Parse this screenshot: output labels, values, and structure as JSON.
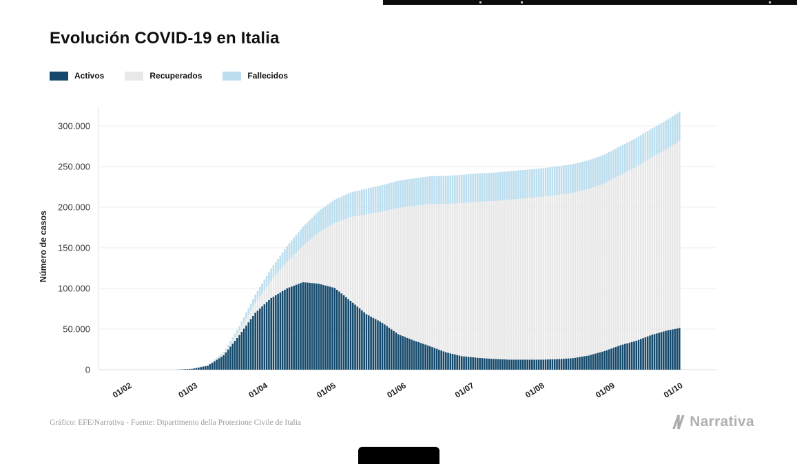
{
  "page": {
    "title": "Evolución COVID-19 en Italia",
    "footer_source": "Gráfico: EFE/Narrativa - Fuente: Dipartimento della Protezione Civile de Italia",
    "brand": "Narrativa"
  },
  "legend": {
    "items": [
      {
        "label": "Activos",
        "color": "#14496B"
      },
      {
        "label": "Recuperados",
        "color": "#E8E8E8"
      },
      {
        "label": "Fallecidos",
        "color": "#BCDEEE"
      }
    ],
    "position": "top-left"
  },
  "chart_data": {
    "type": "area",
    "stacked": true,
    "title": "Evolución COVID-19 en Italia",
    "xlabel": "",
    "ylabel": "Número de casos",
    "grid": "horizontal",
    "ylim": [
      0,
      325000
    ],
    "y_ticks": [
      0,
      50000,
      100000,
      150000,
      200000,
      250000,
      300000
    ],
    "y_tick_labels": [
      "0",
      "50.000",
      "100.000",
      "150.000",
      "200.000",
      "250.000",
      "300.000"
    ],
    "x_tick_labels": [
      "01/02",
      "01/03",
      "01/04",
      "01/05",
      "01/06",
      "01/07",
      "01/08",
      "01/09",
      "01/10"
    ],
    "x_month_days": [
      0,
      29,
      60,
      90,
      121,
      151,
      182,
      213,
      243
    ],
    "x_anchor_dates": [
      "01/02",
      "08/02",
      "15/02",
      "22/02",
      "29/02",
      "07/03",
      "14/03",
      "21/03",
      "28/03",
      "04/04",
      "11/04",
      "18/04",
      "25/04",
      "02/05",
      "09/05",
      "16/05",
      "23/05",
      "30/05",
      "06/06",
      "13/06",
      "20/06",
      "27/06",
      "04/07",
      "11/07",
      "18/07",
      "25/07",
      "01/08",
      "08/08",
      "15/08",
      "22/08",
      "29/08",
      "05/09",
      "12/09",
      "19/09",
      "26/09",
      "01/10"
    ],
    "x_days": [
      0,
      7,
      14,
      21,
      28,
      35,
      42,
      49,
      56,
      63,
      70,
      77,
      84,
      91,
      98,
      105,
      112,
      119,
      126,
      133,
      140,
      147,
      154,
      161,
      168,
      175,
      182,
      189,
      196,
      203,
      210,
      217,
      224,
      231,
      238,
      243
    ],
    "series": [
      {
        "name": "Activos",
        "color": "#14496B",
        "values": [
          2,
          3,
          3,
          76,
          1049,
          4916,
          17750,
          42681,
          70065,
          88274,
          100269,
          107771,
          105847,
          100704,
          84842,
          68351,
          57752,
          43691,
          35877,
          28997,
          21543,
          16681,
          14709,
          13263,
          12442,
          12404,
          12422,
          12924,
          14249,
          17503,
          23035,
          30099,
          35708,
          43161,
          48593,
          51263
        ]
      },
      {
        "name": "Recuperados",
        "color": "#E8E8E8",
        "values": [
          0,
          0,
          1,
          2,
          50,
          589,
          2335,
          6072,
          12384,
          20996,
          32534,
          44927,
          63120,
          79914,
          103031,
          122810,
          136720,
          155633,
          165837,
          174865,
          182453,
          188584,
          191944,
          194273,
          196806,
          198593,
          200229,
          202098,
          203506,
          204960,
          206329,
          209610,
          213950,
          218351,
          223810,
          230320
        ]
      },
      {
        "name": "Fallecidos",
        "color": "#BCDEEE",
        "values": [
          0,
          0,
          0,
          2,
          29,
          233,
          1441,
          4825,
          10023,
          15362,
          19468,
          23227,
          26384,
          28710,
          30395,
          31763,
          32735,
          33340,
          33846,
          34301,
          34610,
          34716,
          34854,
          34938,
          35042,
          35097,
          35146,
          35190,
          35396,
          35430,
          35477,
          35541,
          35603,
          35692,
          35818,
          35894
        ]
      }
    ]
  }
}
